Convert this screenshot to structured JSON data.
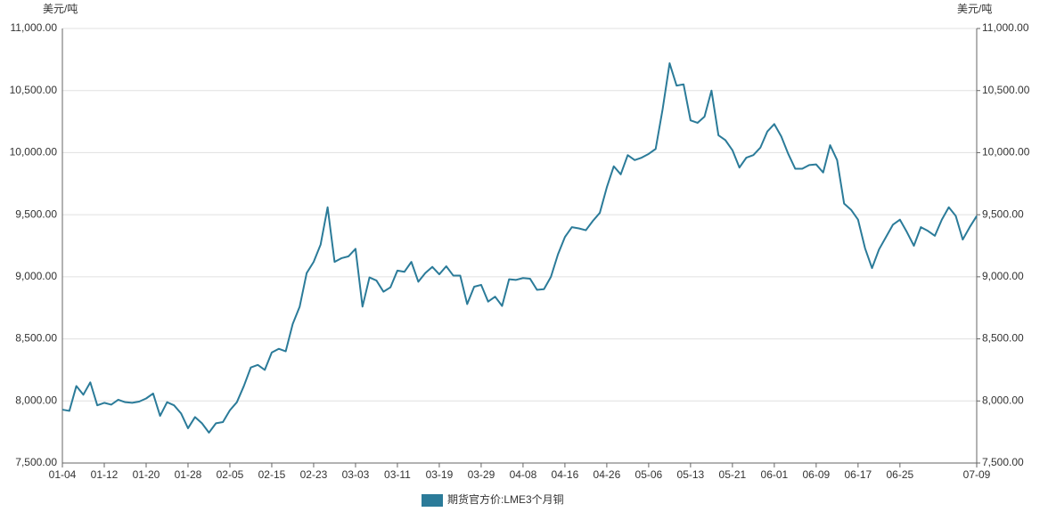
{
  "chart_data": {
    "type": "line",
    "y_label": "美元/吨",
    "y2_label": "美元/吨",
    "categories": [
      "01-04",
      null,
      null,
      null,
      null,
      null,
      "01-12",
      null,
      null,
      null,
      null,
      null,
      "01-20",
      null,
      null,
      null,
      null,
      null,
      "01-28",
      null,
      null,
      null,
      null,
      null,
      "02-05",
      null,
      null,
      null,
      null,
      null,
      "02-15",
      null,
      null,
      null,
      null,
      null,
      "02-23",
      null,
      null,
      null,
      null,
      null,
      "03-03",
      null,
      null,
      null,
      null,
      null,
      "03-11",
      null,
      null,
      null,
      null,
      null,
      "03-19",
      null,
      null,
      null,
      null,
      null,
      "03-29",
      null,
      null,
      null,
      null,
      null,
      "04-08",
      null,
      null,
      null,
      null,
      null,
      "04-16",
      null,
      null,
      null,
      null,
      null,
      "04-26",
      null,
      null,
      null,
      null,
      null,
      "05-06",
      null,
      null,
      null,
      null,
      null,
      "05-13",
      null,
      null,
      null,
      null,
      null,
      "05-21",
      null,
      null,
      null,
      null,
      null,
      "06-01",
      null,
      null,
      null,
      null,
      null,
      "06-09",
      null,
      null,
      null,
      null,
      null,
      "06-17",
      null,
      null,
      null,
      null,
      null,
      "06-25",
      null,
      null,
      null,
      null,
      null,
      null,
      null,
      null,
      null,
      null,
      "07-09"
    ],
    "series": [
      {
        "name": "期货官方价:LME3个月铜",
        "color": "#2b7b99",
        "values": [
          7930,
          7920,
          8120,
          8050,
          8150,
          7965,
          7985,
          7970,
          8010,
          7990,
          7985,
          7995,
          8020,
          8060,
          7880,
          7990,
          7965,
          7900,
          7780,
          7870,
          7820,
          7745,
          7820,
          7830,
          7925,
          7990,
          8120,
          8270,
          8290,
          8250,
          8390,
          8420,
          8400,
          8620,
          8760,
          9030,
          9120,
          9260,
          9560,
          9120,
          9150,
          9165,
          9225,
          8760,
          8995,
          8970,
          8880,
          8915,
          9050,
          9040,
          9120,
          8960,
          9030,
          9080,
          9020,
          9085,
          9010,
          9010,
          8780,
          8920,
          8935,
          8800,
          8840,
          8765,
          8980,
          8975,
          8990,
          8985,
          8895,
          8900,
          9000,
          9180,
          9320,
          9400,
          9390,
          9375,
          9450,
          9515,
          9720,
          9890,
          9825,
          9980,
          9940,
          9960,
          9990,
          10030,
          10350,
          10720,
          10540,
          10550,
          10260,
          10240,
          10290,
          10500,
          10140,
          10100,
          10020,
          9880,
          9960,
          9980,
          10040,
          10170,
          10230,
          10130,
          9990,
          9870,
          9870,
          9900,
          9905,
          9840,
          10060,
          9940,
          9590,
          9540,
          9460,
          9230,
          9070,
          9220,
          9320,
          9420,
          9460,
          9360,
          9250,
          9400,
          9370,
          9330,
          9460,
          9560,
          9490,
          9300,
          9400,
          9490
        ]
      }
    ],
    "ylim": [
      7500,
      11000
    ],
    "yticks": [
      {
        "value": 7500,
        "label": "7,500.00"
      },
      {
        "value": 8000,
        "label": "8,000.00"
      },
      {
        "value": 8500,
        "label": "8,500.00"
      },
      {
        "value": 9000,
        "label": "9,000.00"
      },
      {
        "value": 9500,
        "label": "9,500.00"
      },
      {
        "value": 10000,
        "label": "10,000.00"
      },
      {
        "value": 10500,
        "label": "10,500.00"
      },
      {
        "value": 11000,
        "label": "11,000.00"
      }
    ],
    "y2lim": [
      7500,
      11000
    ],
    "y2ticks": [
      {
        "value": 7500,
        "label": "7,500.00"
      },
      {
        "value": 8000,
        "label": "8,000.00"
      },
      {
        "value": 8500,
        "label": "8,500.00"
      },
      {
        "value": 9000,
        "label": "9,000.00"
      },
      {
        "value": 9500,
        "label": "9,500.00"
      },
      {
        "value": 10000,
        "label": "10,000.00"
      },
      {
        "value": 10500,
        "label": "10,500.00"
      },
      {
        "value": 11000,
        "label": "11,000.00"
      }
    ],
    "grid": true
  }
}
